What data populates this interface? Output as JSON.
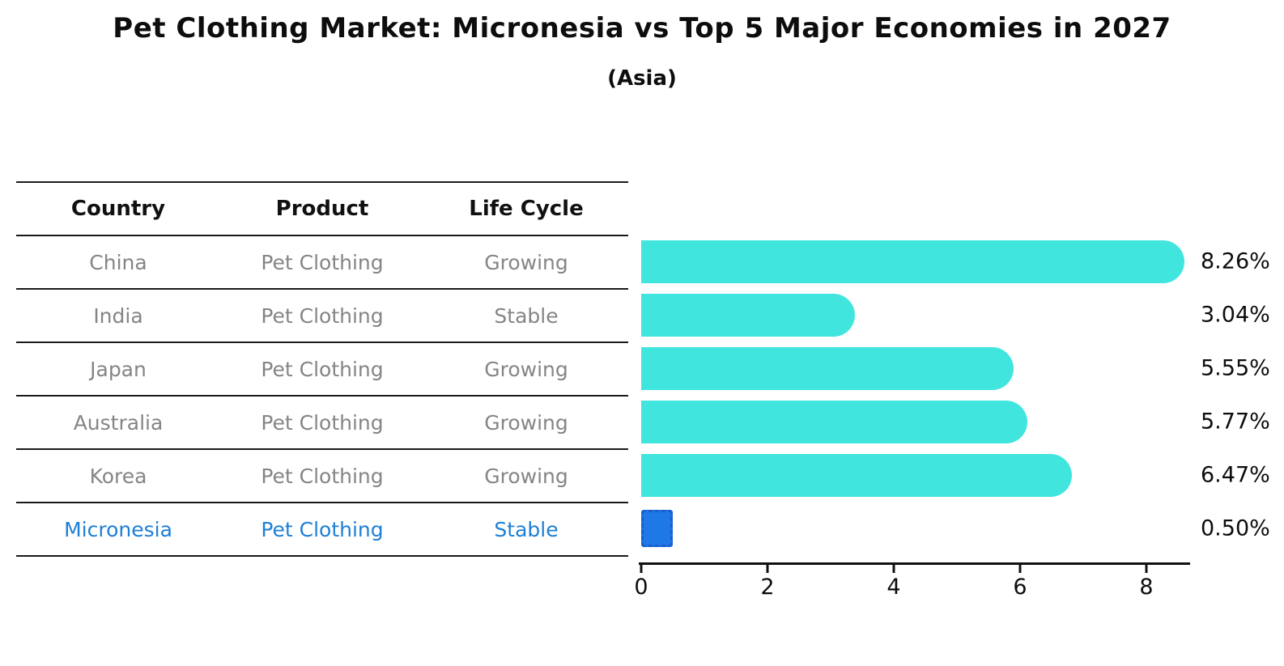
{
  "table": {
    "headers": [
      "Country",
      "Product",
      "Life Cycle"
    ],
    "rows": [
      {
        "country": "China",
        "product": "Pet Clothing",
        "life_cycle": "Growing",
        "highlight": false
      },
      {
        "country": "India",
        "product": "Pet Clothing",
        "life_cycle": "Stable",
        "highlight": false
      },
      {
        "country": "Japan",
        "product": "Pet Clothing",
        "life_cycle": "Growing",
        "highlight": false
      },
      {
        "country": "Australia",
        "product": "Pet Clothing",
        "life_cycle": "Growing",
        "highlight": false
      },
      {
        "country": "Korea",
        "product": "Pet Clothing",
        "life_cycle": "Growing",
        "highlight": false
      },
      {
        "country": "Micronesia",
        "product": "Pet Clothing",
        "life_cycle": "Stable",
        "highlight": true
      }
    ]
  },
  "chart_data": {
    "type": "bar",
    "orientation": "horizontal",
    "title": "Pet Clothing Market: Micronesia vs Top 5 Major Economies in 2027",
    "subtitle": "(Asia)",
    "categories": [
      "China",
      "India",
      "Japan",
      "Australia",
      "Korea",
      "Micronesia"
    ],
    "values": [
      8.26,
      3.04,
      5.55,
      5.77,
      6.47,
      0.5
    ],
    "value_labels": [
      "8.26%",
      "3.04%",
      "5.55%",
      "5.77%",
      "6.47%",
      "0.50%"
    ],
    "x_ticks": [
      0,
      2,
      4,
      6,
      8
    ],
    "xlim": [
      0,
      8.7
    ],
    "xlabel": "",
    "ylabel": "",
    "grid": false,
    "legend": false,
    "bar_color": "#40e5de",
    "highlight_bar_color": "#1e78e6",
    "highlight_bar_border_color": "#1a5fd0",
    "highlight_text_color": "#1e7fd6",
    "axis_color": "#111111"
  }
}
